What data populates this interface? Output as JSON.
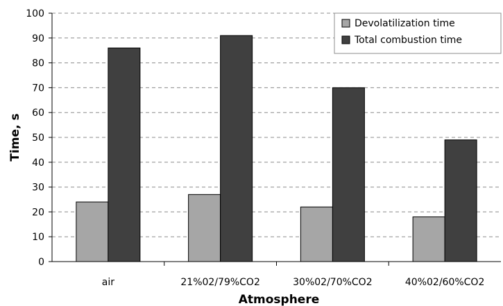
{
  "chart_data": {
    "type": "bar",
    "title": "",
    "xlabel": "Atmosphere",
    "ylabel": "Time, s",
    "ylim": [
      0,
      100
    ],
    "ytick_step": 10,
    "grid": true,
    "legend_position": "top-right",
    "categories": [
      "air",
      "21%02/79%CO2",
      "30%02/70%CO2",
      "40%02/60%CO2"
    ],
    "series": [
      {
        "name": "Devolatilization time",
        "color": "#a6a6a6",
        "values": [
          24,
          27,
          22,
          18
        ]
      },
      {
        "name": "Total combustion time",
        "color": "#404040",
        "values": [
          86,
          91,
          70,
          49
        ]
      }
    ]
  }
}
